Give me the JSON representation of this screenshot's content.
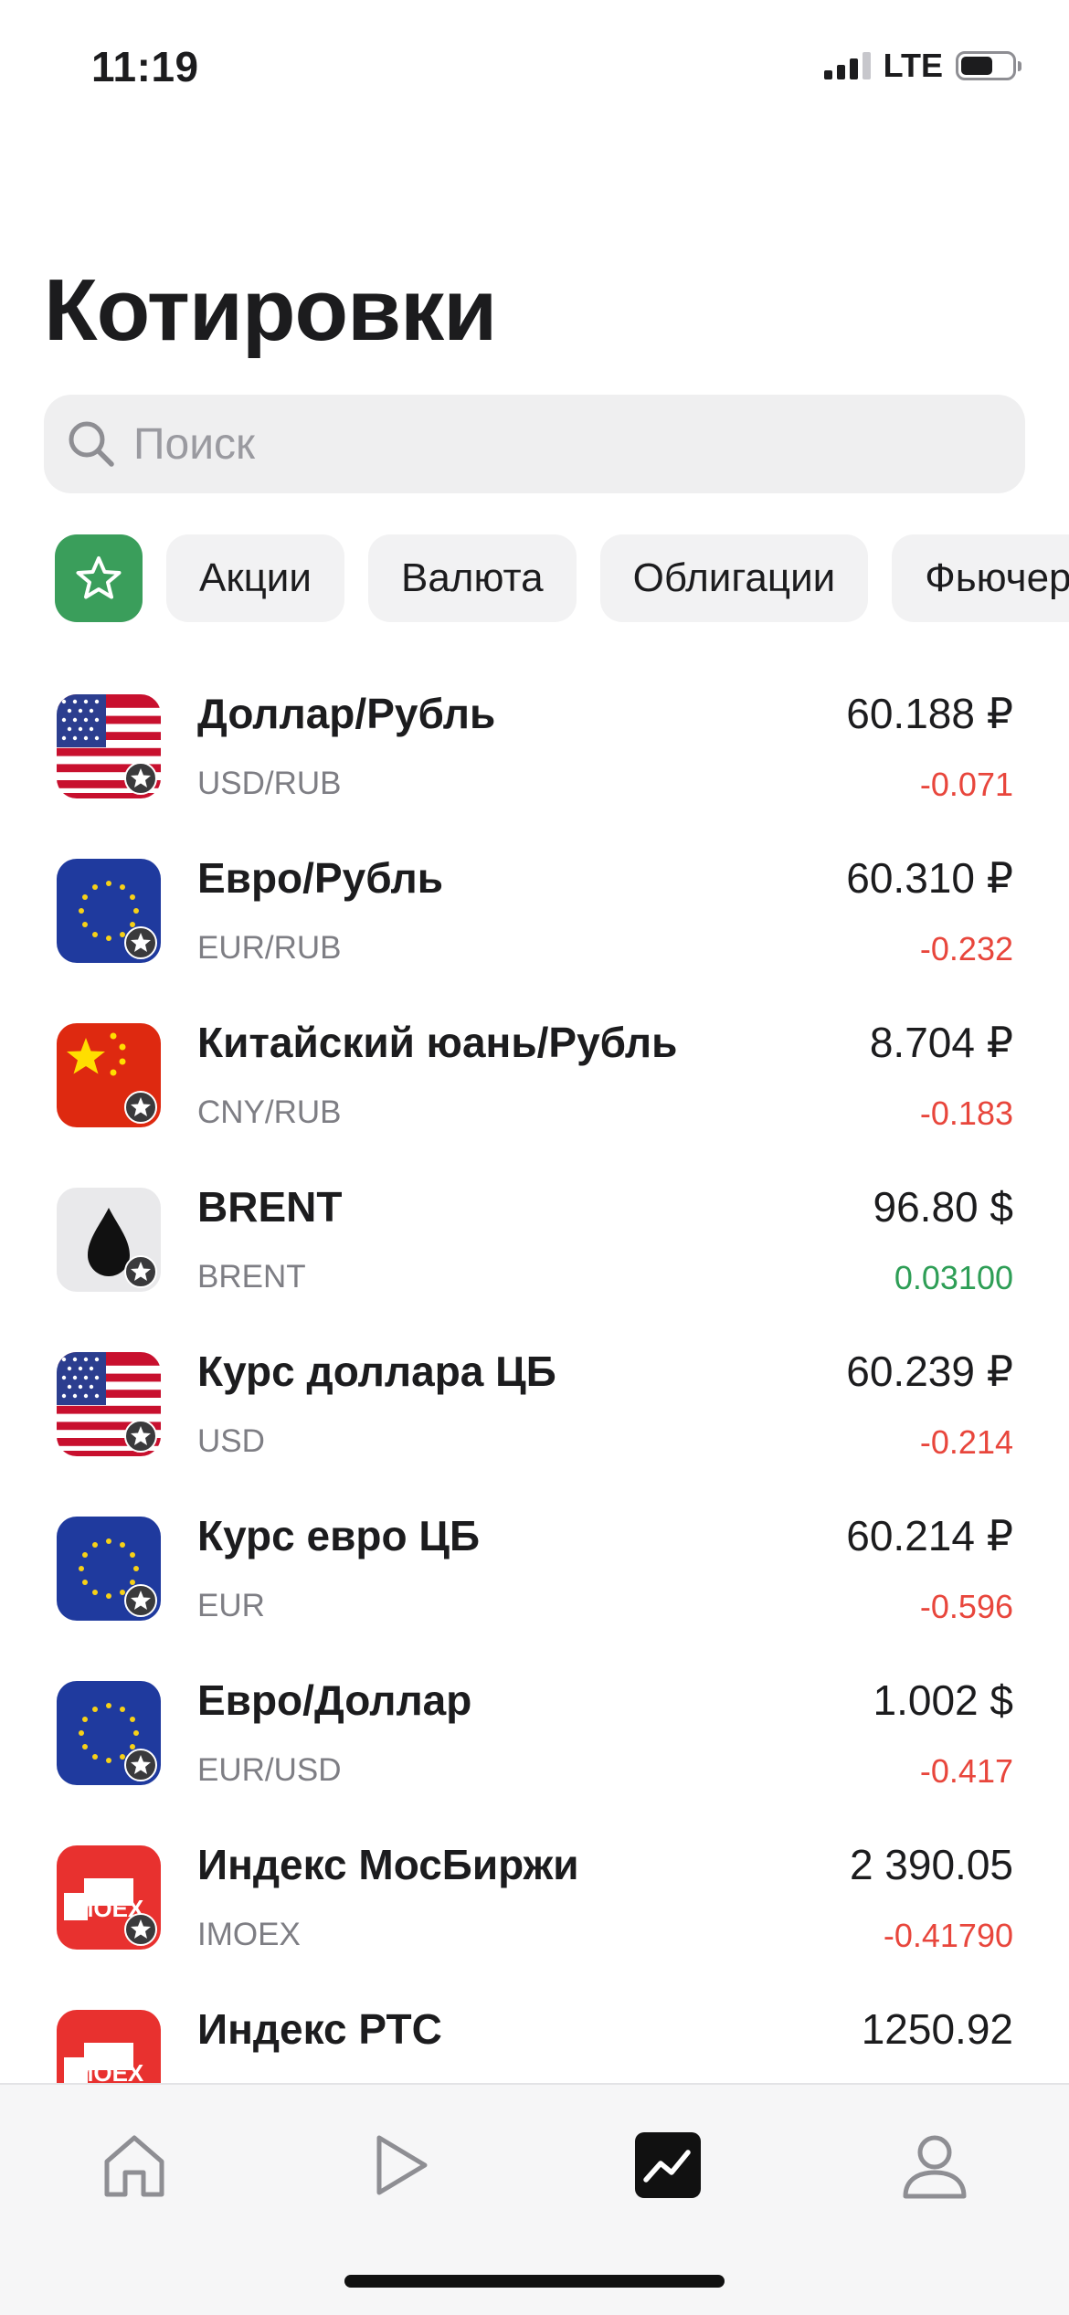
{
  "status_bar": {
    "time": "11:19",
    "network": "LTE"
  },
  "page": {
    "title": "Котировки"
  },
  "search": {
    "placeholder": "Поиск"
  },
  "filters": {
    "favorites_icon": "star-icon",
    "chips": [
      {
        "label": "Акции"
      },
      {
        "label": "Валюта"
      },
      {
        "label": "Облигации"
      },
      {
        "label": "Фьючерсы"
      }
    ]
  },
  "quotes": [
    {
      "name": "Доллар/Рубль",
      "ticker": "USD/RUB",
      "price": "60.188 ₽",
      "change": "-0.071",
      "icon": "us-flag-icon"
    },
    {
      "name": "Евро/Рубль",
      "ticker": "EUR/RUB",
      "price": "60.310 ₽",
      "change": "-0.232",
      "icon": "eu-flag-icon"
    },
    {
      "name": "Китайский юань/Рубль",
      "ticker": "CNY/RUB",
      "price": "8.704 ₽",
      "change": "-0.183",
      "icon": "china-flag-icon"
    },
    {
      "name": "BRENT",
      "ticker": "BRENT",
      "price": "96.80 $",
      "change": "0.03100",
      "icon": "oil-drop-icon"
    },
    {
      "name": "Курс доллара ЦБ",
      "ticker": "USD",
      "price": "60.239 ₽",
      "change": "-0.214",
      "icon": "us-flag-icon"
    },
    {
      "name": "Курс евро ЦБ",
      "ticker": "EUR",
      "price": "60.214 ₽",
      "change": "-0.596",
      "icon": "eu-flag-icon"
    },
    {
      "name": "Евро/Доллар",
      "ticker": "EUR/USD",
      "price": "1.002 $",
      "change": "-0.417",
      "icon": "eu-flag-icon"
    },
    {
      "name": "Индекс МосБиржи",
      "ticker": "IMOEX",
      "price": "2 390.05",
      "change": "-0.41790",
      "icon": "moex-logo-icon",
      "logo_text": "MOEX"
    },
    {
      "name": "Индекс РТС",
      "ticker": "",
      "price": "1250.92",
      "change": "",
      "icon": "moex-logo-icon",
      "logo_text": "MOEX"
    }
  ],
  "colors": {
    "negative": "#e8463c",
    "positive": "#2e9e56",
    "favorites_chip": "#3a9e5b"
  },
  "tab_bar": {
    "tabs": [
      {
        "icon": "home-icon",
        "active": false
      },
      {
        "icon": "play-icon",
        "active": false
      },
      {
        "icon": "chart-icon",
        "active": true
      },
      {
        "icon": "profile-icon",
        "active": false
      }
    ]
  }
}
